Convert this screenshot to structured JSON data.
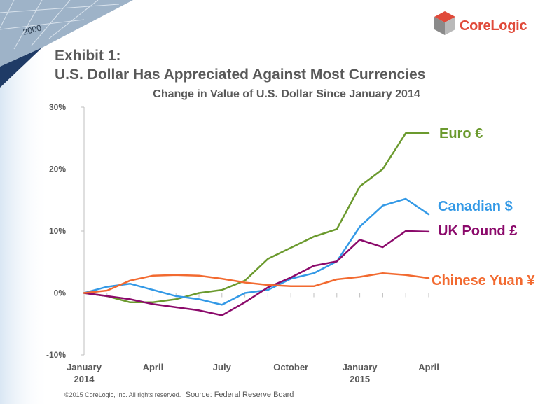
{
  "logo": {
    "name": "CoreLogic"
  },
  "heading": {
    "line1": "Exhibit 1:",
    "line2": "U.S. Dollar Has Appreciated Against Most Currencies"
  },
  "chart_data": {
    "type": "line",
    "title": "Change in Value of U.S. Dollar Since January 2014",
    "x": [
      0,
      1,
      2,
      3,
      4,
      5,
      6,
      7,
      8,
      9,
      10,
      11,
      12,
      13,
      14,
      15
    ],
    "x_ticks": [
      {
        "x": 0,
        "label": [
          "January",
          "2014"
        ]
      },
      {
        "x": 3,
        "label": [
          "April"
        ]
      },
      {
        "x": 6,
        "label": [
          "July"
        ]
      },
      {
        "x": 9,
        "label": [
          "October"
        ]
      },
      {
        "x": 12,
        "label": [
          "January",
          "2015"
        ]
      },
      {
        "x": 15,
        "label": [
          "April"
        ]
      }
    ],
    "y_ticks": [
      "-10%",
      "0%",
      "10%",
      "20%",
      "30%"
    ],
    "ylim": [
      -10,
      30
    ],
    "grid": false,
    "series": [
      {
        "name": "Euro €",
        "color": "#6b9a2e",
        "values": [
          0,
          -0.5,
          -1.5,
          -1.5,
          -1.0,
          0.0,
          0.5,
          2.0,
          5.5,
          7.3,
          9.1,
          10.3,
          17.2,
          20.0,
          25.8,
          25.8
        ]
      },
      {
        "name": "Canadian $",
        "color": "#3399e6",
        "values": [
          0,
          1.0,
          1.5,
          0.5,
          -0.5,
          -1.0,
          -1.9,
          0.0,
          0.5,
          2.3,
          3.2,
          5.1,
          10.7,
          14.1,
          15.2,
          12.7
        ]
      },
      {
        "name": "UK Pound £",
        "color": "#8b0a6b",
        "values": [
          0,
          -0.5,
          -1.0,
          -1.8,
          -2.3,
          -2.8,
          -3.6,
          -1.5,
          0.9,
          2.5,
          4.4,
          5.1,
          8.6,
          7.4,
          10.0,
          9.9
        ]
      },
      {
        "name": "Chinese Yuan ¥",
        "color": "#f26a30",
        "values": [
          0,
          0.4,
          2.0,
          2.8,
          2.9,
          2.8,
          2.3,
          1.7,
          1.3,
          1.1,
          1.1,
          2.2,
          2.6,
          3.2,
          2.9,
          2.4
        ]
      }
    ]
  },
  "footer": {
    "copyright": "©2015 CoreLogic, Inc. All rights reserved.",
    "source": "Source: Federal Reserve Board"
  }
}
